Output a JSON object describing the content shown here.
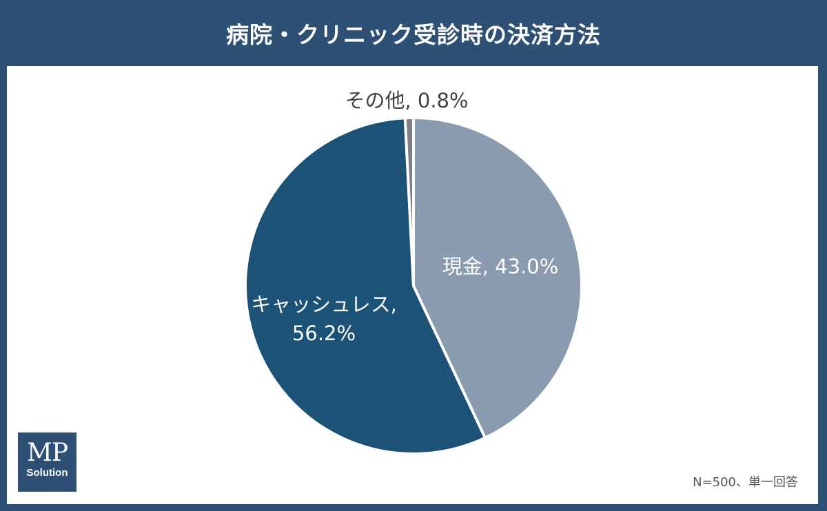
{
  "title": "病院・クリニック受診時の決済方法",
  "footnote": "N=500、単一回答",
  "logo": {
    "line1": "MP",
    "line2": "Solution"
  },
  "colors": {
    "cash": "#8a9bb0",
    "cashless": "#1b5276",
    "other": "#7f7f7f",
    "frame": "#2e5075"
  },
  "chart_data": {
    "type": "pie",
    "title": "病院・クリニック受診時の決済方法",
    "start_angle_deg": 0,
    "direction": "clockwise",
    "slices": [
      {
        "label": "現金",
        "value": 43.0,
        "display": "現金, 43.0%",
        "color": "#8a9bb0"
      },
      {
        "label": "キャッシュレス",
        "value": 56.2,
        "display_line1": "キャッシュレス,",
        "display_line2": "56.2%",
        "color": "#1b5276"
      },
      {
        "label": "その他",
        "value": 0.8,
        "display": "その他, 0.8%",
        "color": "#7f7f7f"
      }
    ],
    "n": 500
  }
}
